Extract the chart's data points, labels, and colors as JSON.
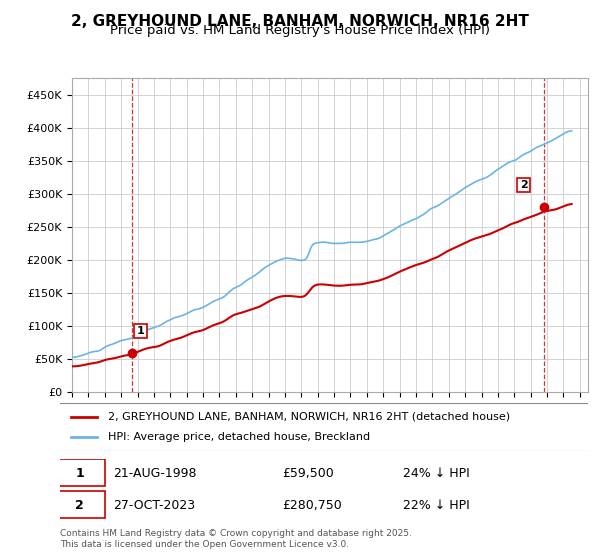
{
  "title": "2, GREYHOUND LANE, BANHAM, NORWICH, NR16 2HT",
  "subtitle": "Price paid vs. HM Land Registry's House Price Index (HPI)",
  "ylabel_ticks": [
    "£0",
    "£50K",
    "£100K",
    "£150K",
    "£200K",
    "£250K",
    "£300K",
    "£350K",
    "£400K",
    "£450K"
  ],
  "ytick_values": [
    0,
    50000,
    100000,
    150000,
    200000,
    250000,
    300000,
    350000,
    400000,
    450000
  ],
  "ylim": [
    0,
    475000
  ],
  "xlim_start": 1995.0,
  "xlim_end": 2026.5,
  "sale1_x": 1998.64,
  "sale1_y": 59500,
  "sale1_label": "1",
  "sale2_x": 2023.83,
  "sale2_y": 280750,
  "sale2_label": "2",
  "line_color_hpi": "#6cb4e4",
  "line_color_house": "#cc0000",
  "vline_color": "#cc0000",
  "vline_style": "--",
  "legend_house": "2, GREYHOUND LANE, BANHAM, NORWICH, NR16 2HT (detached house)",
  "legend_hpi": "HPI: Average price, detached house, Breckland",
  "note1_label": "1",
  "note1_date": "21-AUG-1998",
  "note1_price": "£59,500",
  "note1_hpi": "24% ↓ HPI",
  "note2_label": "2",
  "note2_date": "27-OCT-2023",
  "note2_price": "£280,750",
  "note2_hpi": "22% ↓ HPI",
  "footer": "Contains HM Land Registry data © Crown copyright and database right 2025.\nThis data is licensed under the Open Government Licence v3.0.",
  "bg_color": "#ffffff",
  "plot_bg_color": "#ffffff",
  "grid_color": "#cccccc",
  "title_fontsize": 11,
  "subtitle_fontsize": 9.5
}
